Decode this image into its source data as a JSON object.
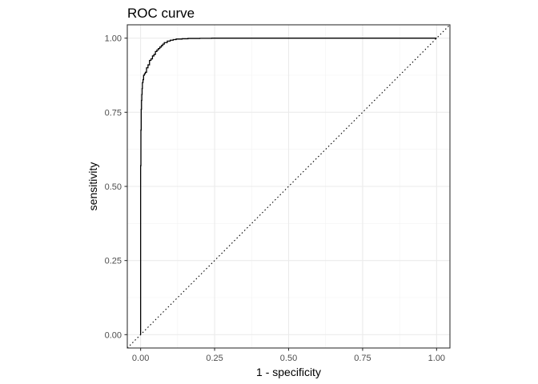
{
  "chart_data": {
    "type": "line",
    "title": "ROC curve",
    "xlabel": "1 - specificity",
    "ylabel": "sensitivity",
    "xlim": [
      -0.045,
      1.045
    ],
    "ylim": [
      -0.045,
      1.045
    ],
    "x_ticks": [
      0,
      0.25,
      0.5,
      0.75,
      1
    ],
    "y_ticks": [
      0,
      0.25,
      0.5,
      0.75,
      1
    ],
    "x_tick_labels": [
      "0.00",
      "0.25",
      "0.50",
      "0.75",
      "1.00"
    ],
    "y_tick_labels": [
      "0.00",
      "0.25",
      "0.50",
      "0.75",
      "1.00"
    ],
    "grid": true,
    "reference_line": {
      "x": [
        0,
        1
      ],
      "y": [
        0,
        1
      ],
      "style": "dotted"
    },
    "series": [
      {
        "x": [
          0,
          0,
          0.001,
          0.001,
          0.002,
          0.002,
          0.003,
          0.003,
          0.004,
          0.004,
          0.005,
          0.005,
          0.006,
          0.006,
          0.008,
          0.008,
          0.01,
          0.01,
          0.013,
          0.013,
          0.016,
          0.016,
          0.02,
          0.02,
          0.025,
          0.025,
          0.03,
          0.03,
          0.035,
          0.035,
          0.04,
          0.04,
          0.045,
          0.045,
          0.05,
          0.05,
          0.055,
          0.055,
          0.06,
          0.06,
          0.065,
          0.065,
          0.07,
          0.07,
          0.075,
          0.075,
          0.08,
          0.08,
          0.09,
          0.09,
          0.1,
          0.1,
          0.11,
          0.11,
          0.12,
          0.12,
          0.14,
          0.14,
          0.16,
          0.16,
          0.2,
          0.2,
          0.24,
          0.24,
          1.0
        ],
        "y": [
          0,
          0.57,
          0.57,
          0.69,
          0.69,
          0.76,
          0.76,
          0.79,
          0.79,
          0.81,
          0.81,
          0.83,
          0.83,
          0.85,
          0.85,
          0.86,
          0.86,
          0.875,
          0.875,
          0.88,
          0.88,
          0.885,
          0.885,
          0.9,
          0.9,
          0.91,
          0.91,
          0.925,
          0.925,
          0.93,
          0.93,
          0.94,
          0.94,
          0.945,
          0.945,
          0.955,
          0.955,
          0.96,
          0.96,
          0.965,
          0.965,
          0.97,
          0.97,
          0.975,
          0.975,
          0.98,
          0.98,
          0.985,
          0.985,
          0.99,
          0.99,
          0.993,
          0.993,
          0.995,
          0.995,
          0.997,
          0.997,
          0.998,
          0.998,
          0.999,
          0.999,
          0.9995,
          0.9995,
          1.0,
          1.0
        ],
        "color": "#000000"
      }
    ]
  }
}
